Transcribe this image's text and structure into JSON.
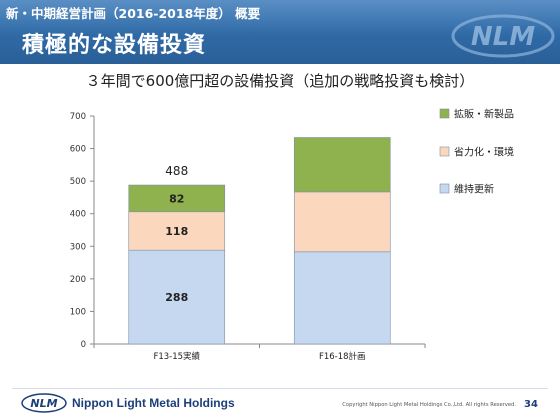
{
  "header": {
    "subtitle": "新・中期経営計画（2016-2018年度） 概要",
    "title": "積極的な設備投資"
  },
  "slide_subtitle": "３年間で600億円超の設備投資（追加の戦略投資も検討）",
  "chart_data": {
    "type": "bar",
    "stacked": true,
    "categories": [
      "F13-15実績",
      "F16-18計画"
    ],
    "series": [
      {
        "name": "維持更新",
        "values": [
          288,
          283
        ],
        "labels": [
          "288",
          null
        ],
        "color": "#c6d7f0"
      },
      {
        "name": "省力化・環境",
        "values": [
          118,
          184
        ],
        "labels": [
          "118",
          null
        ],
        "color": "#fbd7bd"
      },
      {
        "name": "拡販・新製品",
        "values": [
          82,
          167
        ],
        "labels": [
          "82",
          null
        ],
        "color": "#8fb24f"
      }
    ],
    "total_labels": [
      "488",
      null
    ],
    "ylim": [
      0,
      700
    ],
    "yticks": [
      0,
      100,
      200,
      300,
      400,
      500,
      600,
      700
    ],
    "legend_position": "right",
    "grid": false
  },
  "footer": {
    "brand": "Nippon Light Metal Holdings",
    "copyright": "Copyright Nippon Light Metal Holdings Co.,Ltd. All rights Reserved.",
    "page_number": "34"
  }
}
